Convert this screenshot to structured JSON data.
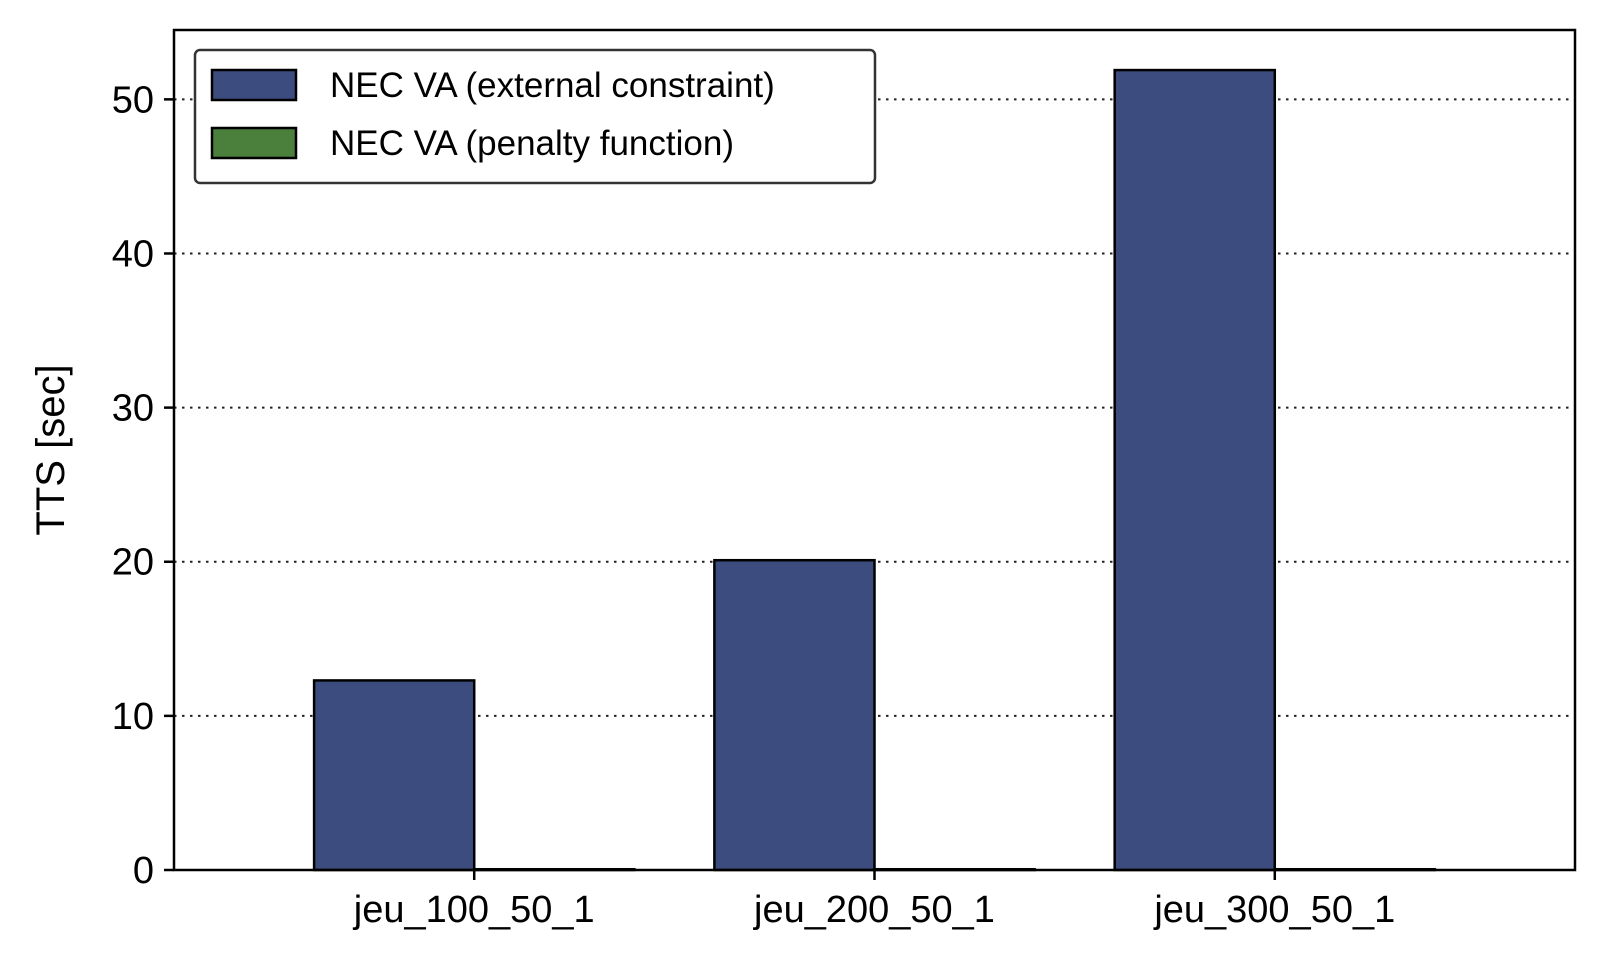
{
  "chart_data": {
    "type": "bar",
    "categories": [
      "jeu_100_50_1",
      "jeu_200_50_1",
      "jeu_300_50_1"
    ],
    "series": [
      {
        "name": "NEC VA (external constraint)",
        "values": [
          12.3,
          20.1,
          51.9
        ],
        "color": "#3c4c7f"
      },
      {
        "name": "NEC VA (penalty function)",
        "values": [
          0.05,
          0.05,
          0.05
        ],
        "color": "#4a7f3c"
      }
    ],
    "title": "",
    "xlabel": "",
    "ylabel": "TTS [sec]",
    "ylim": [
      0,
      54.5
    ],
    "yticks": [
      0,
      10,
      20,
      30,
      40,
      50
    ],
    "grid": "y-dotted",
    "legend": "top-left"
  }
}
